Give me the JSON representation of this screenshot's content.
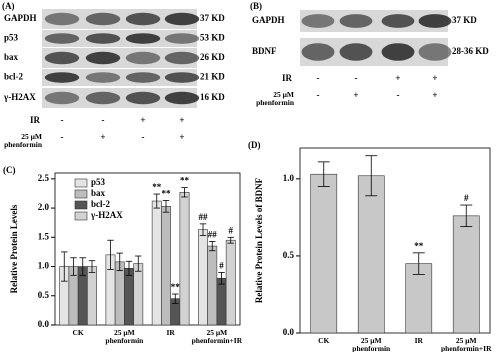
{
  "panel_a": {
    "label": "(A)",
    "bands": [
      {
        "name": "GAPDH",
        "size": "37 KD"
      },
      {
        "name": "p53",
        "size": "53 KD"
      },
      {
        "name": "bax",
        "size": "26 KD"
      },
      {
        "name": "bcl-2",
        "size": "21 KD"
      },
      {
        "name": "γ-H2AX",
        "size": "16 KD"
      }
    ],
    "ir_label": "IR",
    "ir": [
      "-",
      "-",
      "+",
      "+"
    ],
    "phenformin_label": "25 μM phenformin",
    "phenformin": [
      "-",
      "+",
      "-",
      "+"
    ]
  },
  "panel_b": {
    "label": "(B)",
    "bands": [
      {
        "name": "GAPDH",
        "size": "37 KD"
      },
      {
        "name": "BDNF",
        "size": "28-36 KD"
      }
    ],
    "ir_label": "IR",
    "ir": [
      "-",
      "-",
      "+",
      "+"
    ],
    "phenformin_label": "25 μM phenformin",
    "phenformin": [
      "-",
      "+",
      "-",
      "+"
    ]
  },
  "chart_data": [
    {
      "type": "bar",
      "panel_label": "(C)",
      "ylabel": "Relative Protein Levels",
      "categories": [
        "CK",
        "25 μM phenformin",
        "IR",
        "25 μM phenformin+IR"
      ],
      "series": [
        {
          "name": "p53",
          "color": "#e4e4e4",
          "values": [
            1.0,
            1.2,
            2.12,
            1.63
          ],
          "errors": [
            0.25,
            0.25,
            0.12,
            0.1
          ],
          "annotations": [
            null,
            null,
            "**",
            "##"
          ]
        },
        {
          "name": "bax",
          "color": "#bdbdbd",
          "values": [
            1.0,
            1.08,
            2.03,
            1.35
          ],
          "errors": [
            0.15,
            0.15,
            0.1,
            0.08
          ],
          "annotations": [
            null,
            null,
            "**",
            "##"
          ]
        },
        {
          "name": "bcl-2",
          "color": "#555555",
          "values": [
            1.0,
            0.97,
            0.45,
            0.8
          ],
          "errors": [
            0.15,
            0.12,
            0.08,
            0.1
          ],
          "annotations": [
            null,
            null,
            "**",
            "#"
          ]
        },
        {
          "name": "γ-H2AX",
          "color": "#d2d2d2",
          "values": [
            1.0,
            1.05,
            2.27,
            1.45
          ],
          "errors": [
            0.1,
            0.13,
            0.08,
            0.05
          ],
          "annotations": [
            null,
            null,
            "**",
            "#"
          ]
        }
      ],
      "ylim": [
        0,
        2.6
      ],
      "yticks": [
        {
          "value": 0,
          "label": "0.0"
        },
        0.5,
        {
          "value": 1,
          "label": "1.0"
        },
        1.5,
        {
          "value": 2,
          "label": "2.0"
        },
        2.5
      ],
      "legend": "upper left"
    },
    {
      "type": "bar",
      "panel_label": "(D)",
      "ylabel": "Relative Protein Levels of BDNF",
      "categories": [
        "CK",
        "25 μM phenformin",
        "IR",
        "25 μM phenformin+IR"
      ],
      "values": [
        1.03,
        1.02,
        0.45,
        0.76
      ],
      "errors": [
        0.08,
        0.13,
        0.07,
        0.07
      ],
      "annotations": [
        null,
        null,
        "**",
        "#"
      ],
      "color": "#c8c8c8",
      "ylim": [
        0,
        1.2
      ],
      "yticks": [
        {
          "value": 0,
          "label": "0.0"
        },
        0.5,
        {
          "value": 1,
          "label": "1.0"
        }
      ]
    }
  ]
}
